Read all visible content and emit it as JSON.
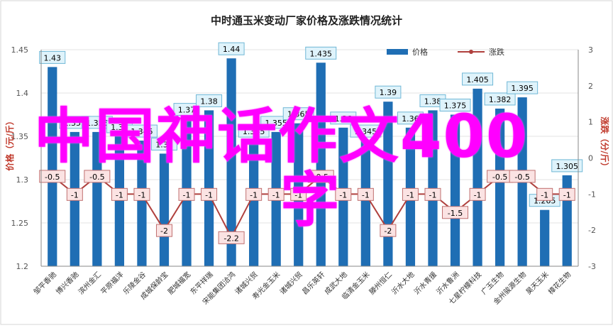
{
  "chart_data": {
    "type": "bar+line",
    "title": "中时通玉米变动厂家价格及涨跌情况统计",
    "ylabel_left": "价格（元/斤）",
    "ylabel_right": "涨跌（分/斤）",
    "ylim_left": [
      1.2,
      1.45
    ],
    "ylim_right": [
      -3,
      3
    ],
    "yticks_left": [
      "1.2",
      "1.25",
      "1.3",
      "1.35",
      "1.4",
      "1.45"
    ],
    "yticks_right": [
      "-3",
      "-2",
      "-1",
      "0",
      "1",
      "2",
      "3"
    ],
    "legend_position": "top-center",
    "grid": true,
    "categories": [
      "邹平香驰",
      "博兴香驰",
      "滨州金汇",
      "平原福洋",
      "乐陵金谷",
      "成城保龄宝",
      "肥城福宽",
      "东平祥瑞",
      "宋能集团洽鸿",
      "诸城兴贸",
      "寿光金玉米",
      "诸城兴贸",
      "昌乐英轩",
      "成武大地",
      "临清金玉米",
      "滕州恒仁",
      "沂水大地",
      "沂水青援",
      "沂水鲁洲",
      "七星柠檬科技",
      "广玉生物",
      "金州骏源生物",
      "昊天玉米",
      "樟花生物"
    ],
    "series": [
      {
        "name": "价格",
        "type": "bar",
        "color": "#1f6eb4",
        "values": [
          1.43,
          1.355,
          1.355,
          1.35,
          1.345,
          1.33,
          1.37,
          1.38,
          1.44,
          1.345,
          1.355,
          1.365,
          1.435,
          1.36,
          1.345,
          1.39,
          1.36,
          1.38,
          1.375,
          1.405,
          1.382,
          1.395,
          1.265,
          1.305
        ],
        "labels": [
          "1.43",
          "1.355",
          "1.355",
          "1.35",
          "1.345",
          "1.33",
          "1.37",
          "1.38",
          "1.44",
          "1.345",
          "1.355",
          "1.365",
          "1.435",
          "1.36",
          "1.345",
          "1.39",
          "1.36",
          "1.38",
          "1.375",
          "1.405",
          "1.382",
          "1.395",
          "1.265",
          "1.305"
        ]
      },
      {
        "name": "涨跌",
        "type": "line",
        "color": "#b0403d",
        "values": [
          -0.5,
          -1,
          -0.5,
          -1,
          -1,
          -2,
          -1,
          -1,
          -2.2,
          -1,
          -1,
          -1,
          -0.5,
          -1,
          -1,
          -2,
          -1,
          -1,
          -1.5,
          -1,
          -0.5,
          -0.5,
          -1,
          -1
        ],
        "labels": [
          "-0.5",
          "-1",
          "-0.5",
          "-1",
          "-1",
          "-2",
          "-1",
          "-1",
          "-2.2",
          "-1",
          "-1",
          "-1",
          "-0.5",
          "-1",
          "-1",
          "-2",
          "-1",
          "-1",
          "-1.5",
          "-1",
          "-0.5",
          "-0.5",
          "-1",
          "-1"
        ]
      }
    ]
  },
  "overlay": {
    "line1": "中国神话作文400",
    "line2": "字"
  },
  "colors": {
    "bar": "#1f6eb4",
    "line": "#b0403d",
    "title": "#1f1f1f",
    "axis_label": "#c0392b",
    "overlay": "#ff00ff",
    "bar_label_bg": "#dff3fb",
    "line_label_bg": "#fbe3e3"
  }
}
